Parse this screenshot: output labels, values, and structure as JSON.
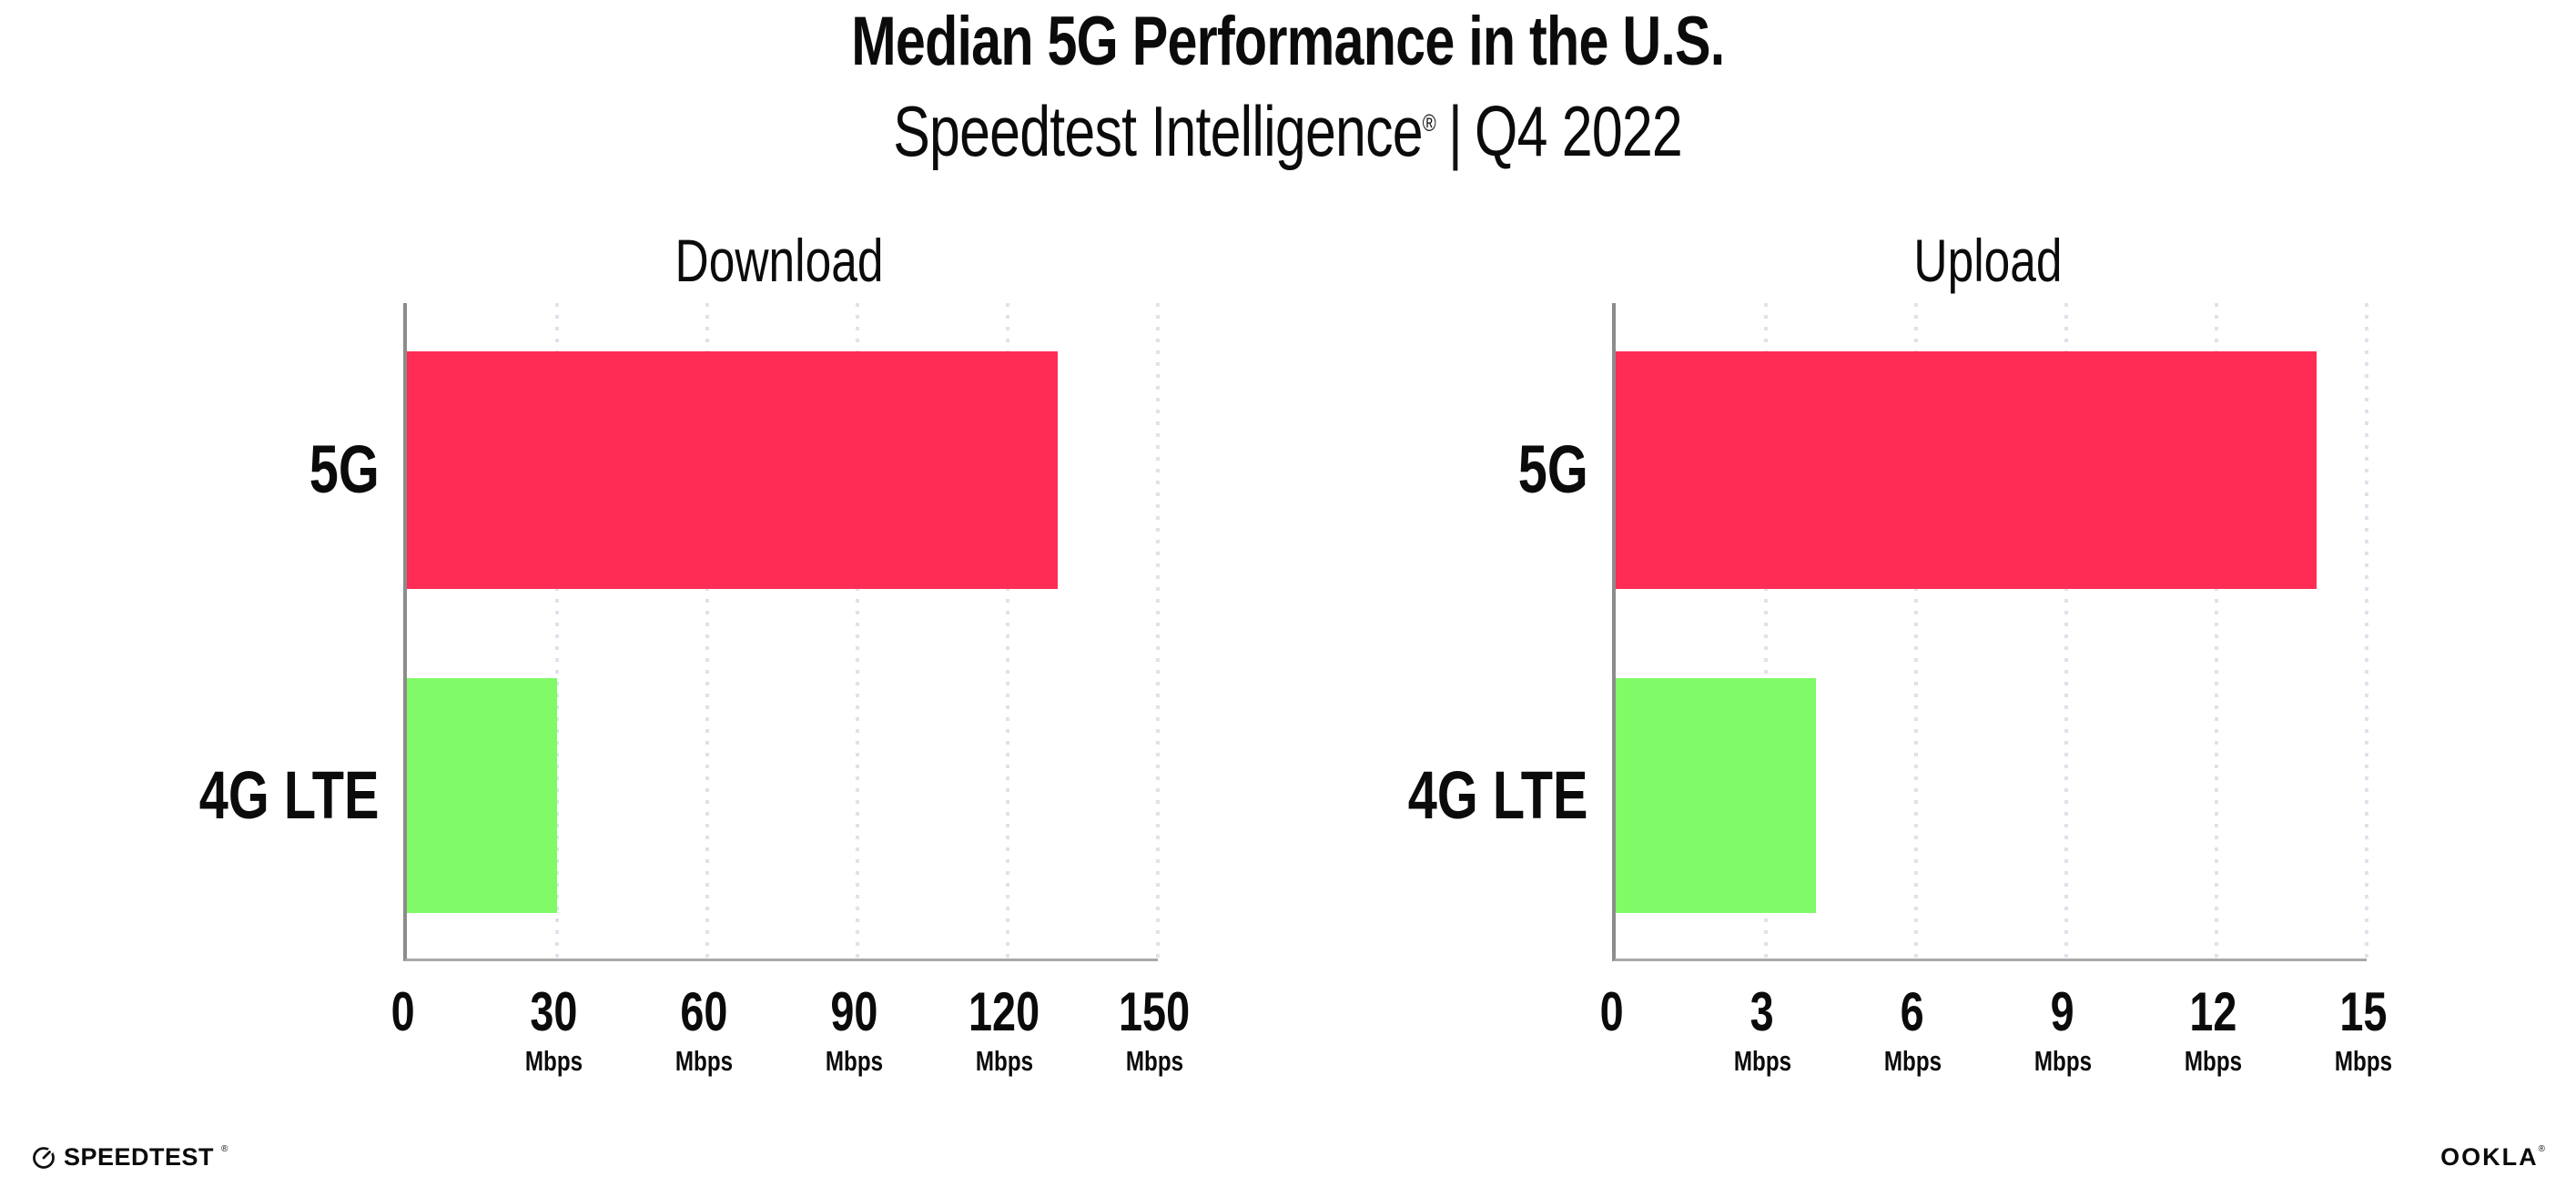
{
  "header": {
    "title": "Median 5G Performance in the U.S.",
    "subtitle_product": "Speedtest Intelligence",
    "subtitle_trademark": "®",
    "subtitle_separator": "|",
    "subtitle_quarter": "Q4 2022"
  },
  "chart_data": [
    {
      "type": "bar",
      "orientation": "horizontal",
      "title": "Download",
      "categories": [
        "5G",
        "4G LTE"
      ],
      "values": [
        130,
        30
      ],
      "unit": "Mbps",
      "xlim": [
        0,
        150
      ],
      "ticks": [
        0,
        30,
        60,
        90,
        120,
        150
      ],
      "bar_colors": [
        "#FF2D55",
        "#80FA66"
      ],
      "grid": "dotted-vertical",
      "legend": "none"
    },
    {
      "type": "bar",
      "orientation": "horizontal",
      "title": "Upload",
      "categories": [
        "5G",
        "4G LTE"
      ],
      "values": [
        14,
        4
      ],
      "unit": "Mbps",
      "xlim": [
        0,
        15
      ],
      "ticks": [
        0,
        3,
        6,
        9,
        12,
        15
      ],
      "bar_colors": [
        "#FF2D55",
        "#80FA66"
      ],
      "grid": "dotted-vertical",
      "legend": "none"
    }
  ],
  "footer": {
    "speedtest": "SPEEDTEST",
    "speedtest_mark": "®",
    "ookla": "OOKLA",
    "ookla_mark": "®"
  },
  "colors": {
    "bar_5g": "#FF2D55",
    "bar_4g_lte": "#80FA66",
    "axis_line": "#8c8c8c",
    "baseline": "#a8a8a8",
    "gridline": "#e1e1ec",
    "text": "#0b0b0b",
    "background": "#ffffff"
  }
}
